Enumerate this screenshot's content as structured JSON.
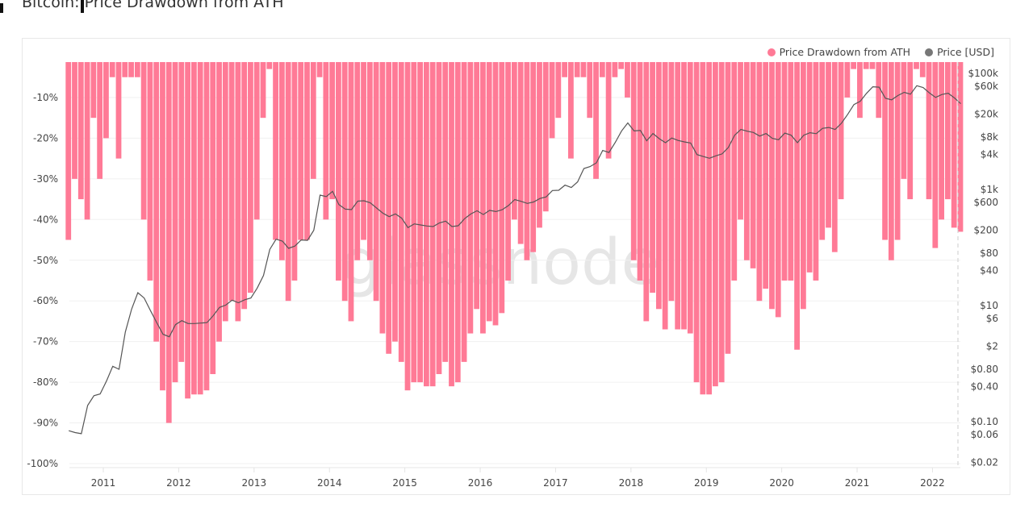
{
  "title": "Bitcoin: Price Drawdown from ATH",
  "watermark": "glassnode",
  "chart_data": {
    "type": "bar",
    "title": "Bitcoin: Price Drawdown from ATH",
    "x_range": [
      "2010-07",
      "2022-05"
    ],
    "x_ticks": [
      "2011",
      "2012",
      "2013",
      "2014",
      "2015",
      "2016",
      "2017",
      "2018",
      "2019",
      "2020",
      "2021",
      "2022"
    ],
    "y_left": {
      "range": [
        -100,
        0
      ],
      "ticks": [
        -10,
        -20,
        -30,
        -40,
        -50,
        -60,
        -70,
        -80,
        -90,
        -100
      ],
      "tick_labels": [
        "-10%",
        "-20%",
        "-30%",
        "-40%",
        "-50%",
        "-60%",
        "-70%",
        "-80%",
        "-90%",
        "-100%"
      ]
    },
    "y_right": {
      "scale": "log",
      "range": [
        0.02,
        100000
      ],
      "ticks": [
        100000,
        60000,
        20000,
        8000,
        4000,
        1000,
        600,
        200,
        80,
        40,
        10,
        6,
        2,
        0.8,
        0.4,
        0.1,
        0.06,
        0.02
      ],
      "tick_labels": [
        "$100k",
        "$60k",
        "$20k",
        "$8k",
        "$4k",
        "$1k",
        "$600",
        "$200",
        "$80",
        "$40",
        "$10",
        "$6",
        "$2",
        "$0.80",
        "$0.40",
        "$0.10",
        "$0.06",
        "$0.02"
      ]
    },
    "grid": true,
    "legend_position": "top-right",
    "series": [
      {
        "name": "Price Drawdown from ATH",
        "type": "bar",
        "axis": "left",
        "color": "#ff7a96",
        "x_start": "2010-07",
        "interval": "month",
        "values": [
          -45,
          -30,
          -35,
          -40,
          -15,
          -30,
          -20,
          -5,
          -25,
          -5,
          -5,
          -5,
          -40,
          -55,
          -70,
          -82,
          -90,
          -80,
          -75,
          -84,
          -83,
          -83,
          -82,
          -78,
          -70,
          -65,
          -60,
          -65,
          -62,
          -58,
          -40,
          -15,
          -3,
          -45,
          -50,
          -60,
          -55,
          -45,
          -45,
          -30,
          -5,
          -40,
          -35,
          -55,
          -60,
          -65,
          -50,
          -45,
          -50,
          -60,
          -68,
          -73,
          -70,
          -75,
          -82,
          -80,
          -80,
          -81,
          -81,
          -78,
          -75,
          -81,
          -80,
          -75,
          -68,
          -62,
          -68,
          -65,
          -66,
          -63,
          -55,
          -40,
          -46,
          -50,
          -48,
          -42,
          -38,
          -20,
          -15,
          -5,
          -25,
          -5,
          -5,
          -15,
          -30,
          -5,
          -25,
          -5,
          -3,
          -10,
          -50,
          -55,
          -65,
          -58,
          -62,
          -67,
          -60,
          -67,
          -67,
          -68,
          -80,
          -83,
          -83,
          -81,
          -80,
          -73,
          -55,
          -40,
          -50,
          -52,
          -60,
          -57,
          -62,
          -64,
          -55,
          -55,
          -72,
          -62,
          -53,
          -55,
          -45,
          -42,
          -48,
          -35,
          -10,
          -3,
          -15,
          -3,
          -3,
          -15,
          -45,
          -50,
          -45,
          -30,
          -35,
          -3,
          -5,
          -35,
          -47,
          -40,
          -35,
          -42,
          -43
        ]
      },
      {
        "name": "Price [USD]",
        "type": "line",
        "axis": "right",
        "color": "#555555",
        "x_start": "2010-07",
        "interval": "month",
        "values": [
          0.07,
          0.065,
          0.062,
          0.19,
          0.28,
          0.3,
          0.5,
          0.9,
          0.8,
          3.5,
          8.7,
          16.7,
          13.5,
          8.2,
          5.1,
          3.2,
          2.9,
          4.7,
          5.5,
          4.9,
          4.9,
          5,
          5.1,
          6.7,
          9.3,
          10.2,
          12.4,
          11.2,
          12.6,
          13.5,
          20,
          33,
          93,
          139,
          129,
          97,
          106,
          135,
          133,
          198,
          800,
          754,
          930,
          550,
          460,
          450,
          630,
          640,
          590,
          480,
          390,
          340,
          380,
          320,
          220,
          255,
          245,
          235,
          230,
          265,
          285,
          230,
          237,
          313,
          378,
          430,
          370,
          437,
          416,
          448,
          530,
          670,
          625,
          575,
          610,
          700,
          745,
          960,
          970,
          1190,
          1080,
          1350,
          2300,
          2480,
          2870,
          4700,
          4340,
          6470,
          10200,
          14000,
          10200,
          10400,
          6900,
          9200,
          7500,
          6400,
          7700,
          7000,
          6600,
          6300,
          4000,
          3700,
          3450,
          3800,
          4100,
          5300,
          8600,
          10800,
          10100,
          9600,
          8300,
          9200,
          7600,
          7200,
          9350,
          8600,
          6400,
          8600,
          9500,
          9150,
          11300,
          11700,
          10800,
          13800,
          19700,
          29000,
          33100,
          45200,
          58800,
          57800,
          37300,
          35000,
          41500,
          47100,
          43800,
          61300,
          57000,
          46300,
          38500,
          43200,
          45500,
          37700,
          30000
        ]
      }
    ]
  }
}
